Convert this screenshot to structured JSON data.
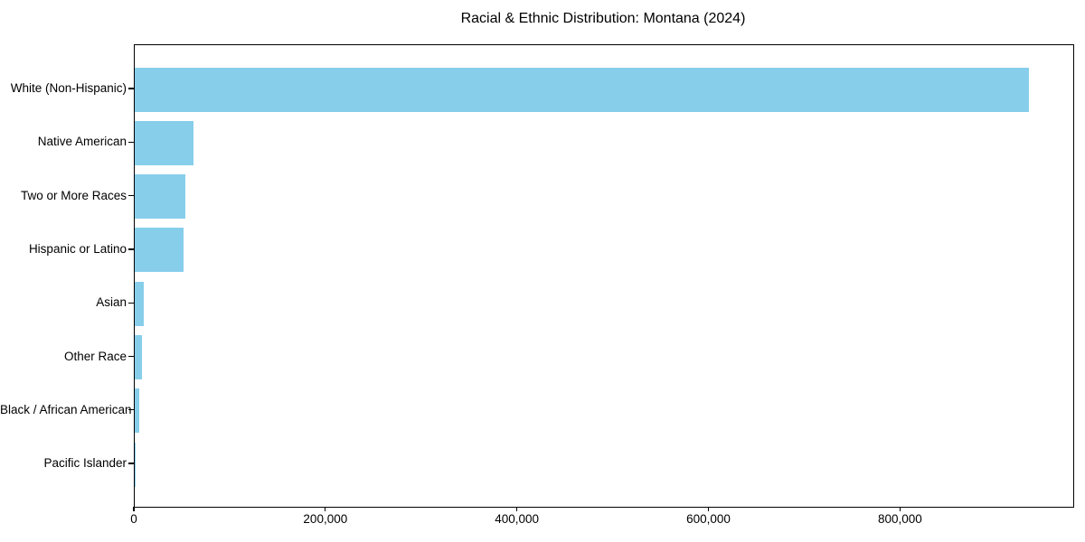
{
  "title": "Racial & Ethnic Distribution: Montana (2024)",
  "chart_data": {
    "type": "bar",
    "orientation": "horizontal",
    "title": "Racial & Ethnic Distribution: Montana (2024)",
    "categories": [
      "White (Non-Hispanic)",
      "Native American",
      "Two or More Races",
      "Hispanic or Latino",
      "Asian",
      "Other Race",
      "Black / African American",
      "Pacific Islander"
    ],
    "values": [
      934000,
      61000,
      53000,
      51000,
      9500,
      7500,
      5000,
      1000
    ],
    "xlabel": "",
    "ylabel": "",
    "xlim": [
      0,
      980000
    ],
    "x_ticks": [
      0,
      200000,
      400000,
      600000,
      800000
    ],
    "x_tick_labels": [
      "0",
      "200,000",
      "400,000",
      "600,000",
      "800,000"
    ],
    "bar_color": "#87CEEB",
    "axis_color": "#000000",
    "text_color": "#000000",
    "background_color": "#FFFFFF",
    "grid": false,
    "legend_position": "none"
  }
}
